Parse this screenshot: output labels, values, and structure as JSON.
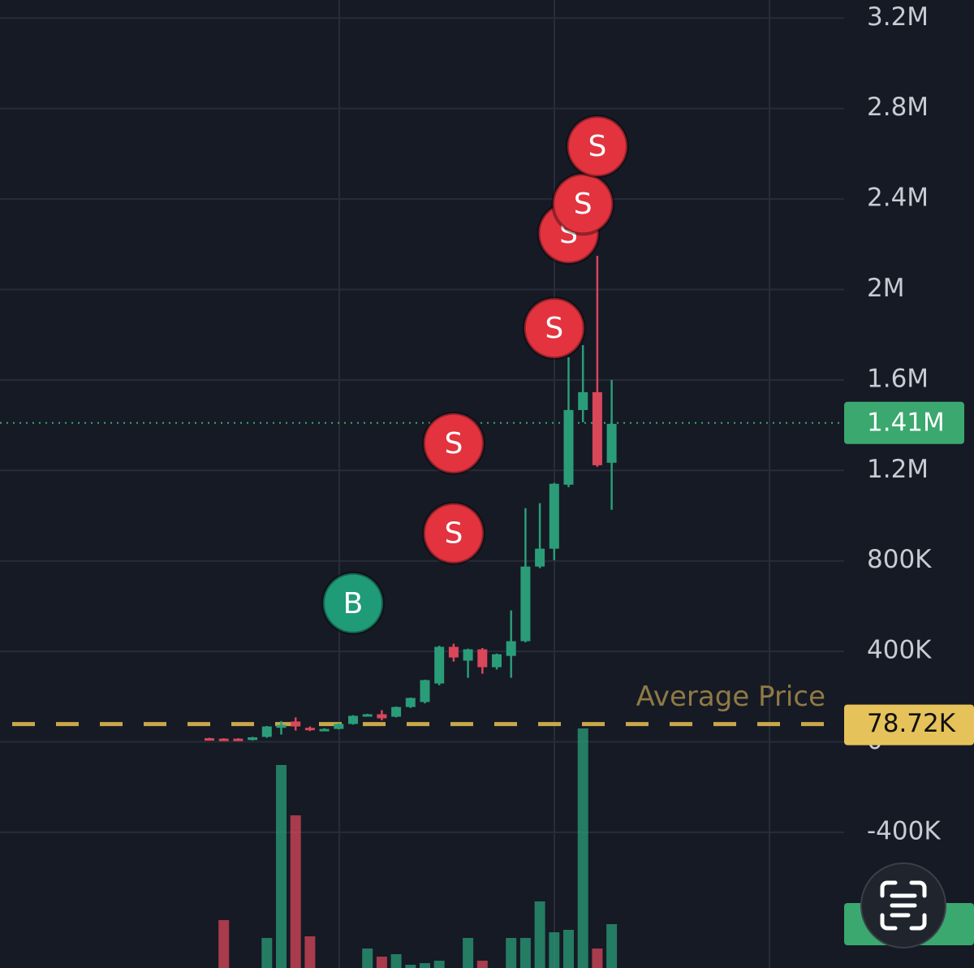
{
  "chart_data": {
    "type": "candlestick",
    "open": [
      16000,
      14000,
      14000,
      8000,
      22000,
      62000,
      90000,
      62000,
      52000,
      57000,
      79000,
      118000,
      122000,
      111000,
      154000,
      176000,
      258000,
      420000,
      359000,
      409000,
      330000,
      380000,
      445000,
      775000,
      854000,
      1137000,
      1467000,
      1546000,
      1234000
    ],
    "high": [
      18000,
      16000,
      16000,
      22000,
      70000,
      92000,
      108000,
      68000,
      60000,
      82000,
      118000,
      124000,
      140000,
      156000,
      196000,
      275000,
      425000,
      434000,
      412000,
      415000,
      390000,
      581000,
      1033000,
      1055000,
      1145000,
      1700000,
      1754000,
      2149000,
      1600000
    ],
    "low": [
      11000,
      10000,
      10000,
      6000,
      18000,
      32000,
      50000,
      48000,
      48000,
      55000,
      76000,
      116000,
      95000,
      108000,
      150000,
      170000,
      250000,
      355000,
      283000,
      301000,
      320000,
      283000,
      440000,
      768000,
      803000,
      1126000,
      1413000,
      1216000,
      1026000
    ],
    "close": [
      13000,
      12000,
      12000,
      20000,
      68000,
      75000,
      68000,
      54000,
      57000,
      79000,
      115000,
      122000,
      104000,
      154000,
      194000,
      273000,
      420000,
      373000,
      409000,
      330000,
      387000,
      445000,
      775000,
      854000,
      1141000,
      1467000,
      1546000,
      1223000,
      1406000
    ],
    "volume": [
      null,
      59,
      null,
      null,
      37,
      250,
      188,
      39,
      null,
      null,
      null,
      24,
      14,
      17,
      4,
      6,
      9,
      null,
      37,
      9,
      null,
      37,
      37,
      82,
      44,
      47,
      295,
      24,
      54
    ],
    "volume_lim": [
      0,
      300
    ],
    "up_color": "#2a9d78",
    "down_color": "#d9475a",
    "ylim": [
      -1000000,
      3280000
    ],
    "yticks": [
      {
        "value": 3200000,
        "label": "3.2M"
      },
      {
        "value": 2800000,
        "label": "2.8M"
      },
      {
        "value": 2400000,
        "label": "2.4M"
      },
      {
        "value": 2000000,
        "label": "2M"
      },
      {
        "value": 1600000,
        "label": "1.6M"
      },
      {
        "value": 1200000,
        "label": "1.2M"
      },
      {
        "value": 800000,
        "label": "800K"
      },
      {
        "value": 400000,
        "label": "400K"
      },
      0,
      {
        "value": -400000,
        "label": "-400K"
      }
    ],
    "grid": true,
    "markers": [
      {
        "label": "B",
        "index": 10,
        "price": 613000,
        "color": "#1f9b78"
      },
      {
        "label": "S",
        "index": 17,
        "price": 922000,
        "color": "#e2333f"
      },
      {
        "label": "S",
        "index": 17,
        "price": 1320000,
        "color": "#e2333f"
      },
      {
        "label": "S",
        "index": 24,
        "price": 1829000,
        "color": "#e2333f"
      },
      {
        "label": "S",
        "index": 25,
        "price": 2249000,
        "color": "#e2333f"
      },
      {
        "label": "S",
        "index": 26,
        "price": 2378000,
        "color": "#e2333f"
      },
      {
        "label": "S",
        "index": 27,
        "price": 2633000,
        "color": "#e2333f"
      }
    ],
    "average_price": {
      "label": "Average Price",
      "value": 78720,
      "value_label": "78.72K",
      "color": "#c9a84a"
    },
    "last_price": {
      "value": 1410000,
      "value_label": "1.41M",
      "color": "#3aa86f"
    }
  }
}
